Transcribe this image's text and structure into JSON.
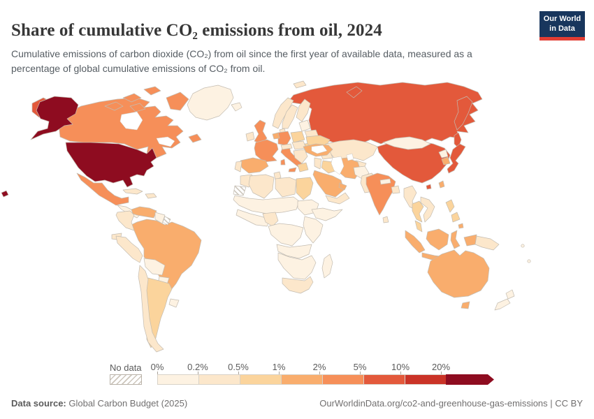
{
  "header": {
    "title": "Share of cumulative CO₂ emissions from oil, 2024",
    "subtitle": "Cumulative emissions of carbon dioxide (CO₂) from oil since the first year of available data, measured as a percentage of global cumulative emissions of CO₂ from oil.",
    "logo": {
      "line1": "Our World",
      "line2": "in Data",
      "bg_color": "#18365d",
      "accent_color": "#e23d33"
    }
  },
  "footer": {
    "source_label": "Data source:",
    "source_value": " Global Carbon Budget (2025)",
    "attribution": "OurWorldinData.org/co2-and-greenhouse-gas-emissions | CC BY"
  },
  "chart_data": {
    "type": "choropleth_map",
    "title": "Share of cumulative CO₂ emissions from oil, 2024",
    "year": 2024,
    "unit": "% of global cumulative CO₂ emissions from oil",
    "legend": {
      "no_data_label": "No data",
      "tick_labels": [
        "0%",
        "0.2%",
        "0.5%",
        "1%",
        "2%",
        "5%",
        "10%",
        "20%"
      ],
      "bins": [
        {
          "range": "0–0.2%",
          "color": "#fdf2e2"
        },
        {
          "range": "0.2–0.5%",
          "color": "#fce7cb"
        },
        {
          "range": "0.5–1%",
          "color": "#fbd49c"
        },
        {
          "range": "1–2%",
          "color": "#f9ad6d"
        },
        {
          "range": "2–5%",
          "color": "#f68f59"
        },
        {
          "range": "5–10%",
          "color": "#e3593b"
        },
        {
          "range": "10–20%",
          "color": "#ca3327"
        },
        {
          "range": "20%+",
          "color": "#8e0c20"
        }
      ],
      "border_color": "#d8d2c8"
    },
    "regions": [
      {
        "id": "usa",
        "name": "United States",
        "bin": "20%+"
      },
      {
        "id": "canada",
        "name": "Canada",
        "bin": "2–5%"
      },
      {
        "id": "greenland",
        "name": "Greenland",
        "bin": "0–0.2%"
      },
      {
        "id": "iceland",
        "name": "Iceland",
        "bin": "0–0.2%"
      },
      {
        "id": "mexico",
        "name": "Mexico",
        "bin": "2–5%"
      },
      {
        "id": "central-america",
        "name": "Central America",
        "bin": "0–0.2%"
      },
      {
        "id": "cuba",
        "name": "Cuba",
        "bin": "0.2–0.5%"
      },
      {
        "id": "hispaniola",
        "name": "Hispaniola",
        "bin": "0.2–0.5%"
      },
      {
        "id": "venezuela",
        "name": "Venezuela",
        "bin": "1–2%"
      },
      {
        "id": "colombia",
        "name": "Colombia",
        "bin": "0.2–0.5%"
      },
      {
        "id": "guyana-suriname",
        "name": "Guyana & Suriname",
        "bin": "0–0.2%"
      },
      {
        "id": "french-guiana",
        "name": "French Guiana",
        "bin": "No data"
      },
      {
        "id": "ecuador",
        "name": "Ecuador",
        "bin": "0.2–0.5%"
      },
      {
        "id": "peru",
        "name": "Peru",
        "bin": "0.2–0.5%"
      },
      {
        "id": "brazil",
        "name": "Brazil",
        "bin": "1–2%"
      },
      {
        "id": "bolivia",
        "name": "Bolivia",
        "bin": "0–0.2%"
      },
      {
        "id": "paraguay",
        "name": "Paraguay",
        "bin": "0–0.2%"
      },
      {
        "id": "chile",
        "name": "Chile",
        "bin": "0.2–0.5%"
      },
      {
        "id": "argentina",
        "name": "Argentina",
        "bin": "0.5–1%"
      },
      {
        "id": "uruguay",
        "name": "Uruguay",
        "bin": "0–0.2%"
      },
      {
        "id": "uk",
        "name": "United Kingdom",
        "bin": "2–5%"
      },
      {
        "id": "ireland",
        "name": "Ireland",
        "bin": "0.2–0.5%"
      },
      {
        "id": "norway",
        "name": "Norway",
        "bin": "0.2–0.5%"
      },
      {
        "id": "sweden",
        "name": "Sweden",
        "bin": "0.2–0.5%"
      },
      {
        "id": "finland",
        "name": "Finland",
        "bin": "0.2–0.5%"
      },
      {
        "id": "denmark",
        "name": "Denmark",
        "bin": "0.2–0.5%"
      },
      {
        "id": "baltics",
        "name": "Baltic states",
        "bin": "0–0.2%"
      },
      {
        "id": "belarus",
        "name": "Belarus",
        "bin": "0.2–0.5%"
      },
      {
        "id": "poland",
        "name": "Poland",
        "bin": "0.5–1%"
      },
      {
        "id": "germany",
        "name": "Germany",
        "bin": "2–5%"
      },
      {
        "id": "benelux",
        "name": "Netherlands & Belgium",
        "bin": "1–2%"
      },
      {
        "id": "france",
        "name": "France",
        "bin": "2–5%"
      },
      {
        "id": "spain",
        "name": "Spain",
        "bin": "1–2%"
      },
      {
        "id": "portugal",
        "name": "Portugal",
        "bin": "0.2–0.5%"
      },
      {
        "id": "italy",
        "name": "Italy",
        "bin": "2–5%"
      },
      {
        "id": "alpine",
        "name": "Switzerland & Austria",
        "bin": "0.2–0.5%"
      },
      {
        "id": "czech-hungary",
        "name": "Czechia & Hungary",
        "bin": "0.2–0.5%"
      },
      {
        "id": "balkans",
        "name": "Balkans",
        "bin": "0.2–0.5%"
      },
      {
        "id": "greece",
        "name": "Greece",
        "bin": "0.5–1%"
      },
      {
        "id": "romania",
        "name": "Romania",
        "bin": "0.5–1%"
      },
      {
        "id": "ukraine",
        "name": "Ukraine",
        "bin": "0.5–1%"
      },
      {
        "id": "russia",
        "name": "Russia",
        "bin": "5–10%"
      },
      {
        "id": "kazakhstan",
        "name": "Kazakhstan",
        "bin": "0.2–0.5%"
      },
      {
        "id": "central-asia",
        "name": "Central Asia",
        "bin": "0.2–0.5%"
      },
      {
        "id": "caucasus",
        "name": "Caucasus",
        "bin": "0.2–0.5%"
      },
      {
        "id": "turkey",
        "name": "Turkey",
        "bin": "1–2%"
      },
      {
        "id": "levant",
        "name": "Levant",
        "bin": "0.2–0.5%"
      },
      {
        "id": "iraq",
        "name": "Iraq",
        "bin": "0.5–1%"
      },
      {
        "id": "iran",
        "name": "Iran",
        "bin": "1–2%"
      },
      {
        "id": "afghanistan",
        "name": "Afghanistan",
        "bin": "0–0.2%"
      },
      {
        "id": "pakistan",
        "name": "Pakistan",
        "bin": "0.2–0.5%"
      },
      {
        "id": "saudi-arabia",
        "name": "Saudi Arabia",
        "bin": "1–2%"
      },
      {
        "id": "gulf-states",
        "name": "Gulf states",
        "bin": "1–2%"
      },
      {
        "id": "yemen-oman",
        "name": "Yemen & Oman",
        "bin": "0.2–0.5%"
      },
      {
        "id": "india",
        "name": "India",
        "bin": "2–5%"
      },
      {
        "id": "sri-lanka",
        "name": "Sri Lanka",
        "bin": "0.2–0.5%"
      },
      {
        "id": "bangladesh",
        "name": "Bangladesh",
        "bin": "0.2–0.5%"
      },
      {
        "id": "nepal",
        "name": "Nepal",
        "bin": "0–0.2%"
      },
      {
        "id": "china",
        "name": "China",
        "bin": "5–10%"
      },
      {
        "id": "mongolia",
        "name": "Mongolia",
        "bin": "0–0.2%"
      },
      {
        "id": "north-korea",
        "name": "North Korea",
        "bin": "0–0.2%"
      },
      {
        "id": "south-korea",
        "name": "South Korea",
        "bin": "1–2%"
      },
      {
        "id": "japan",
        "name": "Japan",
        "bin": "5–10%"
      },
      {
        "id": "taiwan",
        "name": "Taiwan",
        "bin": "1–2%"
      },
      {
        "id": "myanmar",
        "name": "Myanmar",
        "bin": "0.2–0.5%"
      },
      {
        "id": "thailand",
        "name": "Thailand",
        "bin": "0.5–1%"
      },
      {
        "id": "indochina",
        "name": "Vietnam, Laos & Cambodia",
        "bin": "0.2–0.5%"
      },
      {
        "id": "malaysia",
        "name": "Malaysia",
        "bin": "0.5–1%"
      },
      {
        "id": "indonesia",
        "name": "Indonesia",
        "bin": "1–2%"
      },
      {
        "id": "philippines",
        "name": "Philippines",
        "bin": "0.5–1%"
      },
      {
        "id": "png",
        "name": "Papua New Guinea",
        "bin": "0.2–0.5%"
      },
      {
        "id": "australia",
        "name": "Australia",
        "bin": "1–2%"
      },
      {
        "id": "new-zealand",
        "name": "New Zealand",
        "bin": "0–0.2%"
      },
      {
        "id": "pacific-islands",
        "name": "Pacific islands",
        "bin": "0–0.2%"
      },
      {
        "id": "morocco",
        "name": "Morocco",
        "bin": "0.2–0.5%"
      },
      {
        "id": "western-sahara",
        "name": "Western Sahara",
        "bin": "No data"
      },
      {
        "id": "algeria",
        "name": "Algeria",
        "bin": "0.2–0.5%"
      },
      {
        "id": "tunisia",
        "name": "Tunisia",
        "bin": "0.2–0.5%"
      },
      {
        "id": "libya",
        "name": "Libya",
        "bin": "0.2–0.5%"
      },
      {
        "id": "egypt",
        "name": "Egypt",
        "bin": "0.5–1%"
      },
      {
        "id": "sahel",
        "name": "Sahel",
        "bin": "0–0.2%"
      },
      {
        "id": "west-africa",
        "name": "West Africa",
        "bin": "0–0.2%"
      },
      {
        "id": "nigeria",
        "name": "Nigeria",
        "bin": "0.2–0.5%"
      },
      {
        "id": "sudan",
        "name": "Sudan",
        "bin": "0–0.2%"
      },
      {
        "id": "horn-of-africa",
        "name": "Horn of Africa",
        "bin": "0–0.2%"
      },
      {
        "id": "central-africa",
        "name": "Central Africa",
        "bin": "0–0.2%"
      },
      {
        "id": "east-africa",
        "name": "East Africa",
        "bin": "0–0.2%"
      },
      {
        "id": "angola-zambia",
        "name": "Angola & Zambia",
        "bin": "0–0.2%"
      },
      {
        "id": "southern-africa",
        "name": "Southern Africa",
        "bin": "0–0.2%"
      },
      {
        "id": "south-africa",
        "name": "South Africa",
        "bin": "0.2–0.5%"
      },
      {
        "id": "madagascar",
        "name": "Madagascar",
        "bin": "0–0.2%"
      }
    ]
  }
}
